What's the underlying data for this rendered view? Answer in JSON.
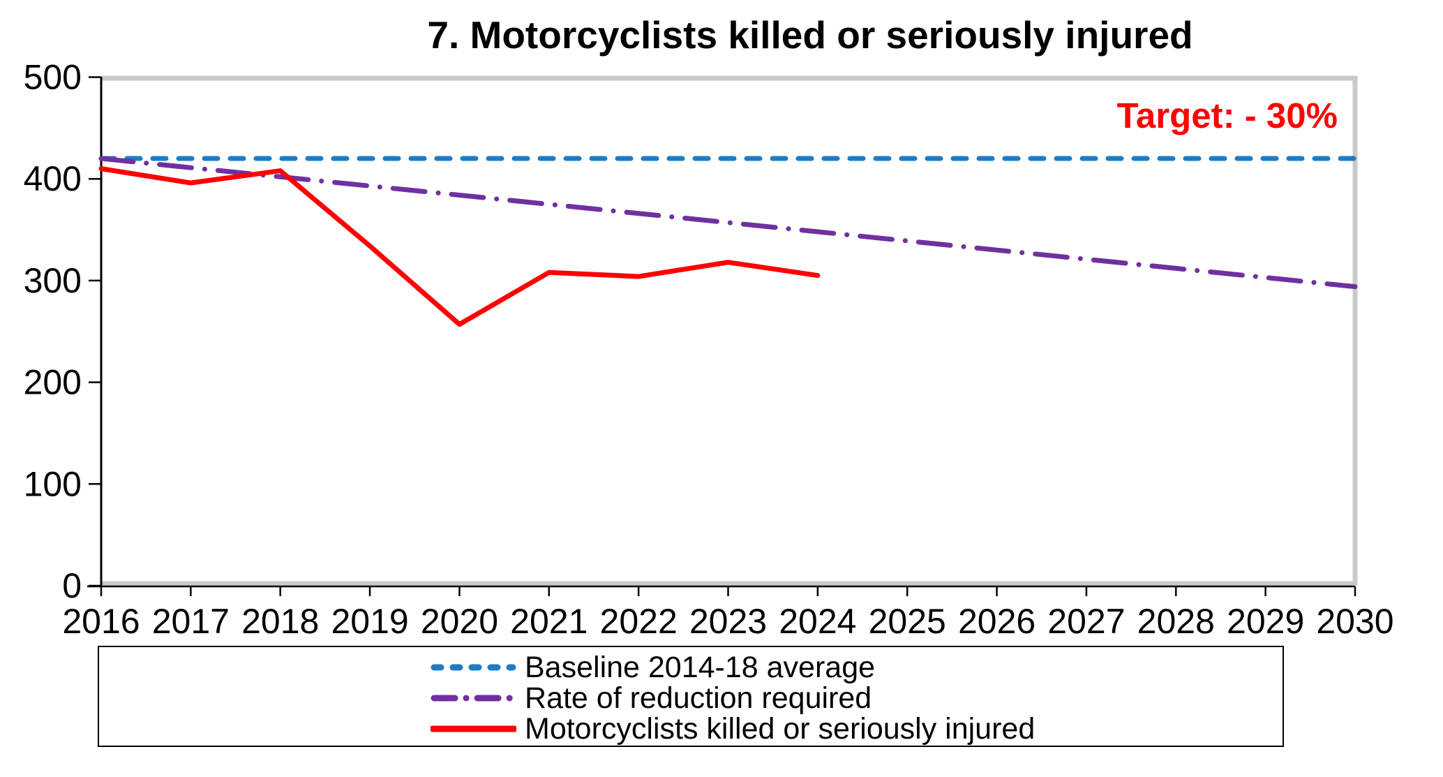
{
  "title": "7. Motorcyclists killed or seriously injured",
  "annotation": {
    "target_label": "Target: - 30%",
    "target_color": "#FF0000"
  },
  "colors": {
    "baseline": "#1F7BC4",
    "required": "#7030A0",
    "actual": "#FF0000",
    "plot_border": "#C9C9C9",
    "axis": "#000000"
  },
  "axes": {
    "y_tick_labels": [
      "500",
      "400",
      "300",
      "200",
      "100",
      "0"
    ],
    "x_tick_labels": [
      "2016",
      "2017",
      "2018",
      "2019",
      "2020",
      "2021",
      "2022",
      "2023",
      "2024",
      "2025",
      "2026",
      "2027",
      "2028",
      "2029",
      "2030"
    ]
  },
  "legend": {
    "items": [
      {
        "series": 0
      },
      {
        "series": 1
      },
      {
        "series": 2
      }
    ]
  },
  "chart_data": {
    "type": "line",
    "categories": [
      2016,
      2017,
      2018,
      2019,
      2020,
      2021,
      2022,
      2023,
      2024,
      2025,
      2026,
      2027,
      2028,
      2029,
      2030
    ],
    "series": [
      {
        "name": "Baseline 2014-18 average",
        "style": "dashed",
        "color": "#1F7BC4",
        "values": [
          420,
          420,
          420,
          420,
          420,
          420,
          420,
          420,
          420,
          420,
          420,
          420,
          420,
          420,
          420
        ]
      },
      {
        "name": "Rate of reduction required",
        "style": "dashdot",
        "color": "#7030A0",
        "values": [
          420,
          411,
          402,
          393,
          384,
          375,
          366,
          357,
          348,
          339,
          330,
          321,
          312,
          303,
          294
        ]
      },
      {
        "name": "Motorcyclists killed or seriously injured",
        "style": "solid",
        "color": "#FF0000",
        "values": [
          410,
          396,
          408,
          334,
          257,
          308,
          304,
          318,
          305
        ]
      }
    ],
    "title": "7. Motorcyclists killed or seriously injured",
    "xlabel": "",
    "ylabel": "",
    "ylim": [
      0,
      500
    ],
    "ytick_step": 100,
    "grid": false,
    "legend_position": "bottom"
  }
}
